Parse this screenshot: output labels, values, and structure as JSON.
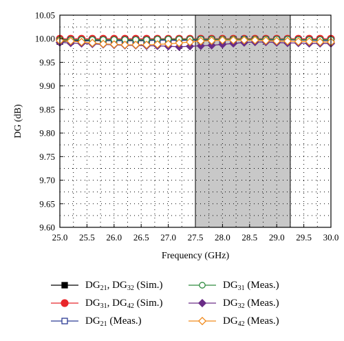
{
  "chart_data": {
    "type": "line",
    "xlabel": "Frequency (GHz)",
    "ylabel": "DG (dB)",
    "xlim": [
      25.0,
      30.0
    ],
    "ylim": [
      9.6,
      10.05
    ],
    "x_ticks": [
      "25.0",
      "25.5",
      "26.0",
      "26.5",
      "27.0",
      "27.5",
      "28.0",
      "28.5",
      "29.0",
      "29.5",
      "30.0"
    ],
    "y_ticks": [
      "9.60",
      "9.65",
      "9.70",
      "9.75",
      "9.80",
      "9.85",
      "9.90",
      "9.95",
      "10.00",
      "10.05"
    ],
    "grid": "dotted",
    "shaded_band": [
      27.5,
      29.25
    ],
    "x": [
      25.0,
      25.2,
      25.4,
      25.6,
      25.8,
      26.0,
      26.2,
      26.4,
      26.6,
      26.8,
      27.0,
      27.2,
      27.4,
      27.6,
      27.8,
      28.0,
      28.2,
      28.4,
      28.6,
      28.8,
      29.0,
      29.2,
      29.4,
      29.6,
      29.8,
      30.0
    ],
    "series": [
      {
        "name": "DG21, DG32 (Sim.)",
        "color": "#000000",
        "marker": "square-filled",
        "values": [
          9.994,
          9.995,
          9.995,
          9.996,
          9.996,
          9.996,
          9.996,
          9.996,
          9.996,
          9.997,
          9.997,
          9.997,
          9.997,
          9.997,
          9.998,
          9.998,
          9.998,
          9.998,
          9.998,
          9.998,
          9.998,
          9.998,
          9.998,
          9.998,
          9.998,
          9.998
        ]
      },
      {
        "name": "DG31, DG42 (Sim.)",
        "color": "#e8262a",
        "marker": "circle-filled",
        "values": [
          10.0,
          10.0,
          10.0,
          10.0,
          10.0,
          10.0,
          10.0,
          10.0,
          10.0,
          10.0,
          10.0,
          10.0,
          10.0,
          10.0,
          10.0,
          10.0,
          10.0,
          10.0,
          10.0,
          10.0,
          10.0,
          10.0,
          10.0,
          10.0,
          10.0,
          10.0
        ]
      },
      {
        "name": "DG21 (Meas.)",
        "color": "#2b3a93",
        "marker": "square-open",
        "values": [
          9.996,
          9.997,
          9.996,
          9.997,
          9.997,
          9.996,
          9.997,
          9.997,
          9.997,
          9.997,
          9.997,
          9.996,
          9.997,
          9.998,
          9.998,
          9.998,
          9.998,
          9.999,
          9.998,
          9.998,
          9.998,
          9.998,
          9.997,
          9.997,
          9.996,
          9.996
        ]
      },
      {
        "name": "DG31 (Meas.)",
        "color": "#2e8b3e",
        "marker": "circle-open",
        "values": [
          9.998,
          9.998,
          9.998,
          9.998,
          9.998,
          9.998,
          9.998,
          9.998,
          9.998,
          9.999,
          9.999,
          9.999,
          9.999,
          9.999,
          9.999,
          9.999,
          9.999,
          9.999,
          9.999,
          9.999,
          9.999,
          9.999,
          9.998,
          9.998,
          9.998,
          9.998
        ]
      },
      {
        "name": "DG32 (Meas.)",
        "color": "#6a2c86",
        "marker": "diamond-filled",
        "values": [
          9.992,
          9.991,
          9.99,
          9.989,
          9.988,
          9.987,
          9.986,
          9.986,
          9.985,
          9.985,
          9.984,
          9.983,
          9.984,
          9.985,
          9.986,
          9.988,
          9.99,
          9.992,
          9.993,
          9.993,
          9.992,
          9.991,
          9.991,
          9.99,
          9.99,
          9.99
        ]
      },
      {
        "name": "DG42 (Meas.)",
        "color": "#f08a1c",
        "marker": "diamond-open",
        "values": [
          9.996,
          9.995,
          9.993,
          9.991,
          9.989,
          9.988,
          9.987,
          9.987,
          9.987,
          9.988,
          9.989,
          9.991,
          9.993,
          9.995,
          9.996,
          9.997,
          9.997,
          9.997,
          9.997,
          9.996,
          9.995,
          9.995,
          9.994,
          9.994,
          9.993,
          9.993
        ]
      }
    ]
  },
  "legend": {
    "items": [
      {
        "main": "DG",
        "sub1": "21",
        "mid": ", DG",
        "sub2": "32",
        "tail": " (Sim.)"
      },
      {
        "main": "DG",
        "sub1": "31",
        "mid": ", DG",
        "sub2": "42",
        "tail": " (Sim.)"
      },
      {
        "main": "DG",
        "sub1": "21",
        "mid": "",
        "sub2": "",
        "tail": " (Meas.)"
      },
      {
        "main": "DG",
        "sub1": "31",
        "mid": "",
        "sub2": "",
        "tail": " (Meas.)"
      },
      {
        "main": "DG",
        "sub1": "32",
        "mid": "",
        "sub2": "",
        "tail": " (Meas.)"
      },
      {
        "main": "DG",
        "sub1": "42",
        "mid": "",
        "sub2": "",
        "tail": " (Meas.)"
      }
    ]
  }
}
